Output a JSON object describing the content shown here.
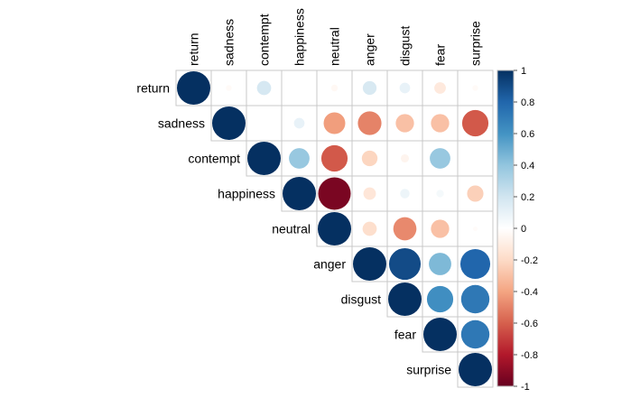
{
  "chart_data": {
    "type": "heatmap",
    "style": "correlation-circle-upper-triangle",
    "variables": [
      "return",
      "sadness",
      "contempt",
      "happiness",
      "neutral",
      "anger",
      "disgust",
      "fear",
      "surprise"
    ],
    "matrix": [
      [
        1.0,
        -0.03,
        0.18,
        0.0,
        -0.04,
        0.17,
        0.1,
        -0.12,
        -0.03
      ],
      [
        -0.03,
        1.0,
        0.0,
        0.1,
        -0.42,
        -0.5,
        -0.3,
        -0.3,
        -0.62
      ],
      [
        0.18,
        0.0,
        1.0,
        0.38,
        -0.62,
        -0.22,
        -0.06,
        0.38,
        0.0
      ],
      [
        0.0,
        0.1,
        0.38,
        1.0,
        -0.95,
        -0.14,
        0.08,
        0.05,
        -0.24
      ],
      [
        -0.04,
        -0.42,
        -0.62,
        -0.95,
        1.0,
        -0.18,
        -0.48,
        -0.3,
        -0.02
      ],
      [
        0.17,
        -0.5,
        -0.22,
        -0.14,
        -0.18,
        1.0,
        0.9,
        0.45,
        0.8
      ],
      [
        0.1,
        -0.3,
        -0.06,
        0.08,
        -0.48,
        0.9,
        1.0,
        0.62,
        0.72
      ],
      [
        -0.12,
        -0.3,
        0.38,
        0.05,
        -0.3,
        0.45,
        0.62,
        1.0,
        0.72
      ],
      [
        -0.03,
        -0.62,
        0.0,
        -0.24,
        -0.02,
        0.8,
        0.72,
        0.72,
        1.0
      ]
    ],
    "colorbar": {
      "range": [
        -1,
        1
      ],
      "ticks": [
        "1",
        "0.8",
        "0.6",
        "0.4",
        "0.2",
        "0",
        "-0.2",
        "-0.4",
        "-0.6",
        "-0.8",
        "-1"
      ],
      "colors": [
        "#67001F",
        "#B2182B",
        "#D6604D",
        "#F4A582",
        "#FDDBC7",
        "#FFFFFF",
        "#D1E5F0",
        "#92C5DE",
        "#4393C3",
        "#2166AC",
        "#053061"
      ]
    }
  }
}
